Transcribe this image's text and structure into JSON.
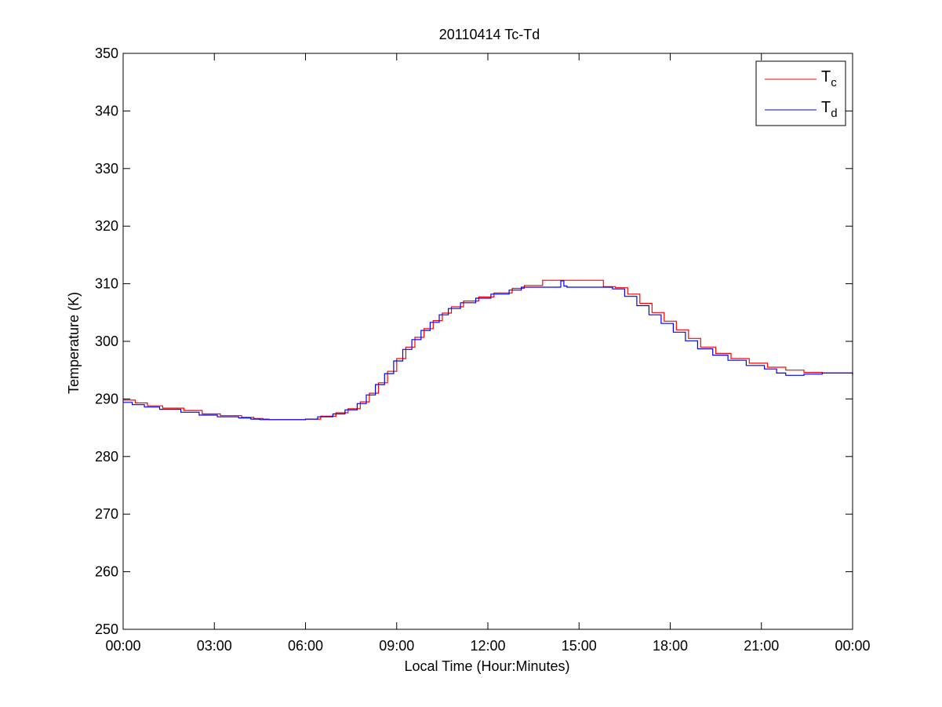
{
  "chart_data": {
    "type": "line",
    "title": "20110414 Tc-Td",
    "xlabel": "Local Time (Hour:Minutes)",
    "ylabel": "Temperature (K)",
    "xlim": [
      0,
      24
    ],
    "ylim": [
      250,
      350
    ],
    "x_ticks": [
      0,
      3,
      6,
      9,
      12,
      15,
      18,
      21,
      24
    ],
    "x_tick_labels": [
      "00:00",
      "03:00",
      "06:00",
      "09:00",
      "12:00",
      "15:00",
      "18:00",
      "21:00",
      "00:00"
    ],
    "y_ticks": [
      250,
      260,
      270,
      280,
      290,
      300,
      310,
      320,
      330,
      340,
      350
    ],
    "y_tick_labels": [
      "250",
      "260",
      "270",
      "280",
      "290",
      "300",
      "310",
      "320",
      "330",
      "340",
      "350"
    ],
    "grid": false,
    "legend_position": "top-right",
    "series": [
      {
        "name": "T",
        "name_subscript": "c",
        "color": "#ff0000",
        "x": [
          0,
          0.4,
          0.8,
          1.3,
          2.0,
          2.6,
          3.2,
          3.9,
          4.3,
          4.6,
          4.8,
          5.2,
          5.6,
          6.0,
          6.5,
          7.0,
          7.4,
          7.8,
          8.1,
          8.4,
          8.7,
          9.0,
          9.3,
          9.6,
          9.9,
          10.2,
          10.5,
          10.8,
          11.2,
          11.7,
          12.2,
          12.8,
          13.2,
          13.8,
          14.4,
          15.0,
          15.4,
          15.8,
          16.2,
          16.6,
          17.0,
          17.4,
          17.8,
          18.2,
          18.6,
          19.0,
          19.5,
          20.0,
          20.6,
          21.2,
          21.8,
          22.4,
          23.0,
          23.3,
          23.5,
          24.0
        ],
        "y": [
          289.8,
          289.3,
          288.8,
          288.4,
          288.0,
          287.4,
          287.1,
          286.8,
          286.6,
          286.5,
          286.4,
          286.4,
          286.4,
          286.5,
          287.0,
          287.6,
          288.3,
          289.5,
          291.0,
          292.8,
          294.8,
          297.0,
          299.0,
          300.7,
          302.2,
          303.6,
          304.9,
          306.0,
          307.0,
          307.7,
          308.4,
          309.2,
          309.7,
          310.6,
          310.6,
          310.6,
          310.6,
          309.5,
          309.3,
          308.2,
          306.6,
          305.0,
          303.5,
          302.0,
          300.5,
          299.0,
          297.9,
          297.0,
          296.2,
          295.5,
          295.0,
          294.6,
          294.5,
          294.5,
          294.5,
          294.3
        ]
      },
      {
        "name": "T",
        "name_subscript": "d",
        "color": "#0000ff",
        "x": [
          0,
          0.3,
          0.7,
          1.2,
          1.9,
          2.5,
          3.1,
          3.8,
          4.2,
          4.5,
          4.8,
          5.2,
          5.6,
          6.0,
          6.4,
          6.9,
          7.3,
          7.7,
          8.0,
          8.3,
          8.6,
          8.9,
          9.2,
          9.5,
          9.8,
          10.1,
          10.4,
          10.7,
          11.1,
          11.6,
          12.1,
          12.7,
          13.1,
          13.7,
          14.2,
          14.4,
          14.5,
          14.6,
          15.0,
          15.4,
          15.8,
          16.1,
          16.5,
          16.9,
          17.3,
          17.7,
          18.1,
          18.5,
          18.9,
          19.4,
          19.9,
          20.5,
          21.1,
          21.5,
          21.8,
          22.4,
          23.0,
          23.5,
          24.0
        ],
        "y": [
          289.4,
          289.0,
          288.6,
          288.2,
          287.7,
          287.2,
          286.9,
          286.7,
          286.5,
          286.4,
          286.4,
          286.4,
          286.4,
          286.5,
          286.9,
          287.4,
          288.1,
          289.2,
          290.7,
          292.5,
          294.4,
          296.6,
          298.6,
          300.3,
          301.9,
          303.3,
          304.6,
          305.7,
          306.7,
          307.5,
          308.2,
          308.9,
          309.4,
          309.4,
          309.4,
          310.5,
          309.6,
          309.4,
          309.4,
          309.4,
          309.4,
          309.1,
          307.8,
          306.2,
          304.6,
          303.1,
          301.6,
          300.1,
          298.7,
          297.6,
          296.7,
          295.8,
          295.2,
          294.5,
          294.1,
          294.3,
          294.5,
          294.5,
          294.1
        ]
      }
    ]
  }
}
